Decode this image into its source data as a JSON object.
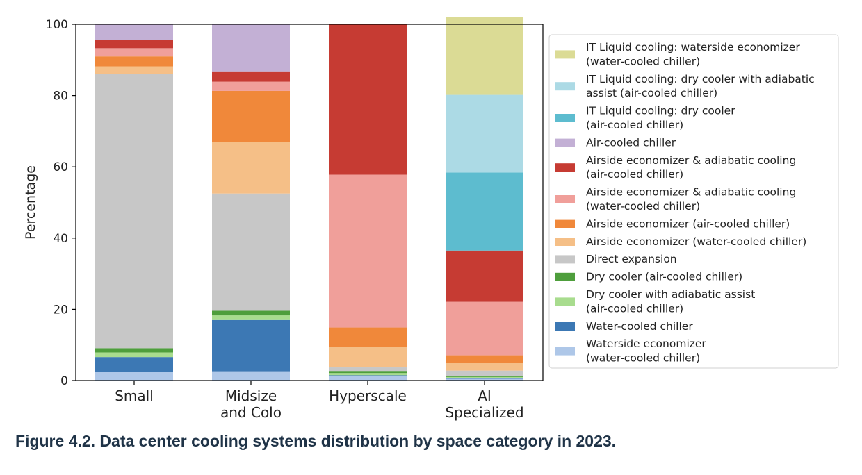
{
  "chart_data": {
    "type": "bar",
    "stacked": true,
    "ylabel": "Percentage",
    "xlabel": "",
    "ylim": [
      0,
      100
    ],
    "yticks": [
      0,
      20,
      40,
      60,
      80,
      100
    ],
    "legend_position": "right",
    "categories": [
      {
        "line1": "Small",
        "line2": ""
      },
      {
        "line1": "Midsize",
        "line2": "and Colo"
      },
      {
        "line1": "Hyperscale",
        "line2": ""
      },
      {
        "line1": "AI",
        "line2": "Specialized"
      }
    ],
    "series": [
      {
        "name": "Waterside economizer (water-cooled chiller)",
        "legend_lines": [
          "Waterside economizer",
          "(water-cooled chiller)"
        ],
        "color": "#aec7e8",
        "values": [
          2.4,
          2.6,
          1.2,
          0.5
        ]
      },
      {
        "name": "Water-cooled chiller",
        "legend_lines": [
          "Water-cooled chiller"
        ],
        "color": "#3c78b4",
        "values": [
          4.2,
          14.4,
          0.3,
          0.2
        ]
      },
      {
        "name": "Dry cooler with adiabatic assist (air-cooled chiller)",
        "legend_lines": [
          "Dry cooler with adiabatic assist",
          "(air-cooled chiller)"
        ],
        "color": "#a8dc8e",
        "values": [
          1.3,
          1.3,
          0.6,
          0.3
        ]
      },
      {
        "name": "Dry cooler (air-cooled chiller)",
        "legend_lines": [
          "Dry cooler (air-cooled chiller)"
        ],
        "color": "#4e9e3c",
        "values": [
          1.2,
          1.3,
          0.6,
          0.3
        ]
      },
      {
        "name": "Direct expansion",
        "legend_lines": [
          "Direct expansion"
        ],
        "color": "#c7c7c7",
        "values": [
          76.9,
          32.9,
          1.0,
          1.5
        ]
      },
      {
        "name": "Airside economizer (water-cooled chiller)",
        "legend_lines": [
          "Airside economizer (water-cooled chiller)"
        ],
        "color": "#f5bf87",
        "values": [
          2.2,
          14.5,
          5.7,
          2.2
        ]
      },
      {
        "name": "Airside economizer (air-cooled chiller)",
        "legend_lines": [
          "Airside economizer (air-cooled chiller)"
        ],
        "color": "#f0883a",
        "values": [
          2.8,
          14.3,
          5.5,
          2.1
        ]
      },
      {
        "name": "Airside economizer & adiabatic cooling (water-cooled chiller)",
        "legend_lines": [
          "Airside economizer & adiabatic cooling",
          "(water-cooled chiller)"
        ],
        "color": "#f09f9a",
        "values": [
          2.3,
          2.6,
          42.9,
          15.0
        ]
      },
      {
        "name": "Airside economizer & adiabatic cooling (air-cooled chiller)",
        "legend_lines": [
          "Airside economizer & adiabatic cooling",
          "(air-cooled chiller)"
        ],
        "color": "#c63b33",
        "values": [
          2.3,
          2.9,
          42.2,
          14.4
        ]
      },
      {
        "name": "Air-cooled chiller",
        "legend_lines": [
          "Air-cooled chiller"
        ],
        "color": "#c3b0d5",
        "values": [
          4.4,
          13.2,
          0.0,
          0.0
        ]
      },
      {
        "name": "IT Liquid cooling: dry cooler (air-cooled chiller)",
        "legend_lines": [
          "IT Liquid cooling: dry cooler",
          "(air-cooled chiller)"
        ],
        "color": "#5dbccf",
        "values": [
          0,
          0,
          0,
          21.9
        ]
      },
      {
        "name": "IT Liquid cooling: dry cooler with adiabatic assist (air-cooled chiller)",
        "legend_lines": [
          "IT Liquid cooling: dry cooler with adiabatic",
          "assist (air-cooled chiller)"
        ],
        "color": "#acdae5",
        "values": [
          0,
          0,
          0,
          21.8
        ]
      },
      {
        "name": "IT Liquid cooling: waterside economizer (water-cooled chiller)",
        "legend_lines": [
          "IT Liquid cooling: waterside economizer",
          "(water-cooled chiller)"
        ],
        "color": "#dbdb95",
        "values": [
          0,
          0,
          0,
          21.8
        ]
      }
    ]
  },
  "caption": "Figure 4.2.  Data center cooling systems distribution by space category in 2023."
}
